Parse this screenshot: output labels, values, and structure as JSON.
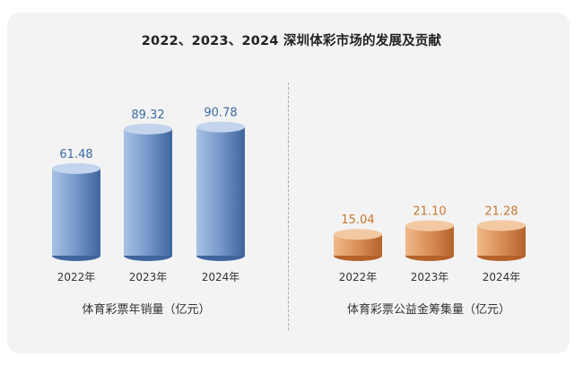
{
  "title": "2022、2023、2024 深圳体彩市场的发展及贡献",
  "chart_data": [
    {
      "type": "bar",
      "title": "体育彩票年销量（亿元）",
      "categories": [
        "2022年",
        "2023年",
        "2024年"
      ],
      "values": [
        61.48,
        89.32,
        90.78
      ],
      "value_labels": [
        "61.48",
        "89.32",
        "90.78"
      ],
      "ylim": [
        0,
        100
      ],
      "color": "#5a80b6",
      "label_color": "#3d6aa5"
    },
    {
      "type": "bar",
      "title": "体育彩票公益金筹集量（亿元）",
      "categories": [
        "2022年",
        "2023年",
        "2024年"
      ],
      "values": [
        15.04,
        21.1,
        21.28
      ],
      "value_labels": [
        "15.04",
        "21.10",
        "21.28"
      ],
      "ylim": [
        0,
        100
      ],
      "color": "#d9914f",
      "label_color": "#c8782f"
    }
  ]
}
